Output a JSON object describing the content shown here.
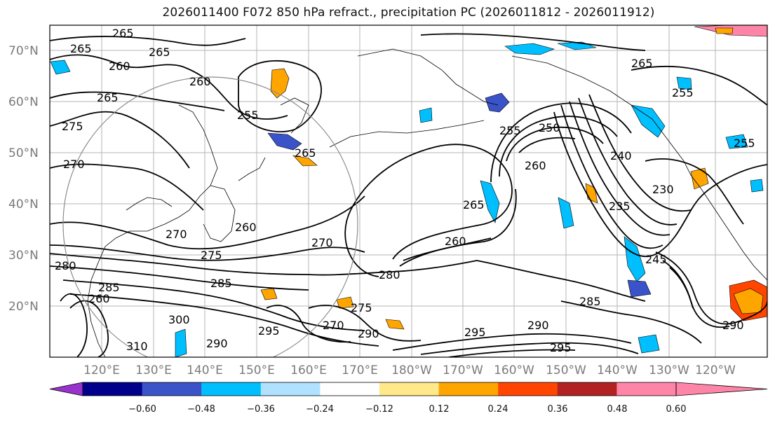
{
  "title": "2026011400 F072 850 hPa refract., precipitation PC (2026011812 - 2026011912)",
  "map": {
    "lat_labels": [
      "70°N",
      "60°N",
      "50°N",
      "40°N",
      "30°N",
      "20°N"
    ],
    "lon_labels": [
      "120°E",
      "130°E",
      "140°E",
      "150°E",
      "160°E",
      "170°E",
      "180°W",
      "170°W",
      "160°W",
      "150°W",
      "140°W",
      "130°W",
      "120°W"
    ],
    "contour_labels": [
      "265",
      "265",
      "265",
      "260",
      "260",
      "265",
      "275",
      "270",
      "255",
      "265",
      "260",
      "270",
      "275",
      "285",
      "280",
      "260",
      "255",
      "250",
      "260",
      "240",
      "230",
      "235",
      "265",
      "255",
      "280",
      "285",
      "290",
      "295",
      "295",
      "290",
      "290",
      "295",
      "270",
      "275",
      "260",
      "290",
      "285",
      "300",
      "310",
      "265",
      "255",
      "245",
      "270"
    ]
  },
  "colorbar": {
    "ticks": [
      "−0.60",
      "−0.48",
      "−0.36",
      "−0.24",
      "−0.12",
      "0.12",
      "0.24",
      "0.36",
      "0.48",
      "0.60"
    ],
    "colors": [
      "#9932cc",
      "#00008b",
      "#3a53c8",
      "#00bfff",
      "#b0e2ff",
      "#ffffff",
      "#ffe88a",
      "#ffa500",
      "#ff4500",
      "#b22222",
      "#ff85a8",
      "#ff85a8"
    ]
  }
}
